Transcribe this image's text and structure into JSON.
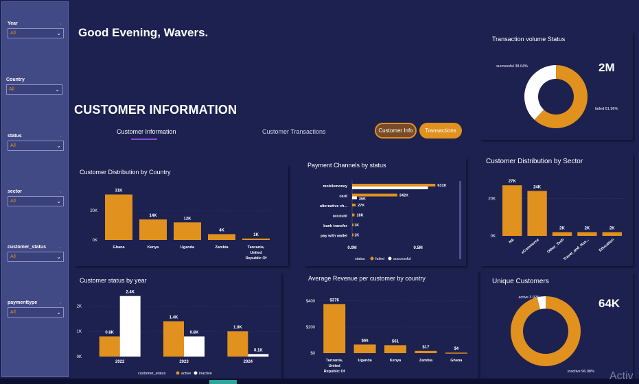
{
  "filters": [
    {
      "label": "Year",
      "value": "All"
    },
    {
      "label": "Country",
      "value": "All"
    },
    {
      "label": "status",
      "value": "All"
    },
    {
      "label": "sector",
      "value": "All"
    },
    {
      "label": "customer_status",
      "value": "All"
    },
    {
      "label": "paymenttype",
      "value": "All"
    }
  ],
  "header": {
    "greeting": "Good Evening, Wavers.",
    "section_title": "CUSTOMER INFORMATION"
  },
  "tabs": [
    {
      "label": "Customer Information"
    },
    {
      "label": "Customer Transactions"
    }
  ],
  "buttons": {
    "customer_info": "Customer Info",
    "transactions": "Transactions"
  },
  "watermark": "Activ",
  "colors": {
    "background": "#1c2150",
    "sidebar": "#424a86",
    "accent": "#e0911e",
    "secondary": "#ffffff",
    "tab_underline": "#8a4cd6"
  },
  "chart_data": [
    {
      "id": "volume_status",
      "type": "pie",
      "title": "Transaction volume Status",
      "kpi": "2M",
      "slices": [
        {
          "name": "failed",
          "value": 61.96,
          "label": "failed 61.96%",
          "color": "#e0911e"
        },
        {
          "name": "successful",
          "value": 38.04,
          "label": "successful 38.04%",
          "color": "#ffffff"
        }
      ]
    },
    {
      "id": "country_dist",
      "type": "bar",
      "title": "Customer Distribution by Country",
      "categories": [
        "Ghana",
        "Kenya",
        "Uganda",
        "Zambia",
        "Tanzania, United Republic Of"
      ],
      "category_lines": [
        [
          "Ghana"
        ],
        [
          "Kenya"
        ],
        [
          "Uganda"
        ],
        [
          "Zambia"
        ],
        [
          "Tanzania,",
          "United",
          "Republic Of"
        ]
      ],
      "values": [
        31000,
        14000,
        12000,
        4000,
        1000
      ],
      "data_labels": [
        "31K",
        "14K",
        "12K",
        "4K",
        "1K"
      ],
      "yticks": [
        0,
        20000
      ],
      "ytick_labels": [
        "0K",
        "20K"
      ],
      "ylim": [
        0,
        35000
      ]
    },
    {
      "id": "payment_channels",
      "type": "bar",
      "orientation": "horizontal",
      "title": "Payment Channels by status",
      "categories": [
        "mobilemoney",
        "card",
        "alternative ch...",
        "account",
        "bank transfer",
        "pay with wallet"
      ],
      "series": [
        {
          "name": "failed",
          "color": "#e0911e",
          "values": [
            631000,
            342000,
            27000,
            18000,
            1000,
            1000
          ]
        },
        {
          "name": "successful",
          "color": "#ffffff",
          "values": [
            575000,
            36000,
            0,
            0,
            0,
            0
          ]
        }
      ],
      "data_labels": [
        [
          "631K",
          ""
        ],
        [
          "342K",
          "36K"
        ],
        [
          "27K",
          ""
        ],
        [
          "18K",
          ""
        ],
        [
          "1K",
          ""
        ],
        [
          "1K",
          ""
        ]
      ],
      "xticks": [
        0,
        500000
      ],
      "xtick_labels": [
        "0.0M",
        "0.5M"
      ],
      "xlim": [
        0,
        650000
      ],
      "legend": {
        "title": "status",
        "items": [
          "failed",
          "successful"
        ]
      }
    },
    {
      "id": "sector_dist",
      "type": "bar",
      "title": "Customer Distribution by Sector",
      "categories": [
        "NA",
        "eCommerce",
        "Other_Tech",
        "Travel_and_Hos...",
        "Education"
      ],
      "values": [
        27000,
        24000,
        2000,
        2000,
        2000
      ],
      "data_labels": [
        "27K",
        "24K",
        "2K",
        "2K",
        "2K"
      ],
      "yticks": [
        0,
        20000
      ],
      "ytick_labels": [
        "0K",
        "20K"
      ],
      "ylim": [
        0,
        30000
      ]
    },
    {
      "id": "status_by_year",
      "type": "bar",
      "title": "Customer status by year",
      "categories": [
        "2022",
        "2023",
        "2024"
      ],
      "series": [
        {
          "name": "active",
          "color": "#e0911e",
          "values": [
            800,
            1400,
            1000
          ],
          "labels": [
            "0.8K",
            "1.4K",
            "1.0K"
          ]
        },
        {
          "name": "inactive",
          "color": "#ffffff",
          "values": [
            2400,
            800,
            100
          ],
          "labels": [
            "2.4K",
            "0.8K",
            "0.1K"
          ]
        }
      ],
      "yticks": [
        0,
        1000,
        2000
      ],
      "ytick_labels": [
        "0K",
        "1K",
        "2K"
      ],
      "ylim": [
        0,
        2500
      ],
      "legend": {
        "title": "customer_status",
        "items": [
          "active",
          "inactive"
        ]
      }
    },
    {
      "id": "avg_revenue",
      "type": "bar",
      "title": "Average Revenue per customer by country",
      "categories": [
        "Tanzania, United Republic Of",
        "Uganda",
        "Kenya",
        "Zambia",
        "Ghana"
      ],
      "category_lines": [
        [
          "Tanzania,",
          "United",
          "Republic Of"
        ],
        [
          "Uganda"
        ],
        [
          "Kenya"
        ],
        [
          "Zambia"
        ],
        [
          "Ghana"
        ]
      ],
      "values": [
        376,
        66,
        61,
        17,
        4
      ],
      "data_labels": [
        "$376",
        "$66",
        "$61",
        "$17",
        "$4"
      ],
      "yticks": [
        0,
        200,
        400
      ],
      "ytick_labels": [
        "$0",
        "$200",
        "$400"
      ],
      "ylim": [
        0,
        420
      ]
    },
    {
      "id": "unique_customers",
      "type": "pie",
      "title": "Unique Customers",
      "kpi": "64K",
      "slices": [
        {
          "name": "inactive",
          "value": 96.08,
          "label": "inactive 96.08%",
          "color": "#e0911e"
        },
        {
          "name": "active",
          "value": 3.92,
          "label": "active 3.92%",
          "color": "#ffffff"
        }
      ]
    }
  ]
}
